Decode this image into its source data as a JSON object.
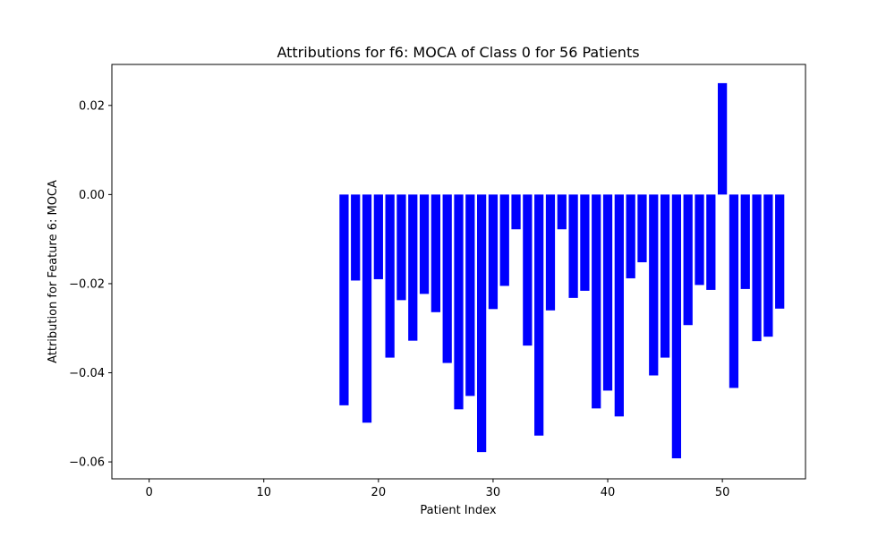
{
  "chart_data": {
    "type": "bar",
    "title": "Attributions for f6: MOCA of Class 0 for 56 Patients",
    "xlabel": "Patient Index",
    "ylabel": "Attribution for Feature 6: MOCA",
    "xlim": [
      -3.25,
      57.25
    ],
    "ylim": [
      -0.0638,
      0.0292
    ],
    "xticks": [
      0,
      10,
      20,
      30,
      40,
      50
    ],
    "yticks": [
      0.02,
      0.0,
      -0.02,
      -0.04,
      -0.06
    ],
    "ytick_labels": [
      "0.02",
      "0.00",
      "−0.02",
      "−0.04",
      "−0.06"
    ],
    "grid": false,
    "bar_color": "#0000ff",
    "bar_width": 0.8,
    "x": [
      0,
      1,
      2,
      3,
      4,
      5,
      6,
      7,
      8,
      9,
      10,
      11,
      12,
      13,
      14,
      15,
      16,
      17,
      18,
      19,
      20,
      21,
      22,
      23,
      24,
      25,
      26,
      27,
      28,
      29,
      30,
      31,
      32,
      33,
      34,
      35,
      36,
      37,
      38,
      39,
      40,
      41,
      42,
      43,
      44,
      45,
      46,
      47,
      48,
      49,
      50,
      51,
      52,
      53,
      54,
      55
    ],
    "values": [
      0,
      0,
      0,
      0,
      0,
      0,
      0,
      0,
      0,
      0,
      0,
      0,
      0,
      0,
      0,
      0,
      0,
      -0.0473,
      -0.0193,
      -0.0512,
      -0.019,
      -0.0366,
      -0.0237,
      -0.0328,
      -0.0223,
      -0.0264,
      -0.0378,
      -0.0482,
      -0.0452,
      -0.0578,
      -0.0257,
      -0.0205,
      -0.0078,
      -0.0339,
      -0.0541,
      -0.026,
      -0.0078,
      -0.0232,
      -0.0216,
      -0.048,
      -0.044,
      -0.0498,
      -0.0188,
      -0.0152,
      -0.0406,
      -0.0366,
      -0.0592,
      -0.0293,
      -0.0203,
      -0.0214,
      0.025,
      -0.0434,
      -0.0212,
      -0.0329,
      -0.0319,
      -0.0256
    ]
  }
}
